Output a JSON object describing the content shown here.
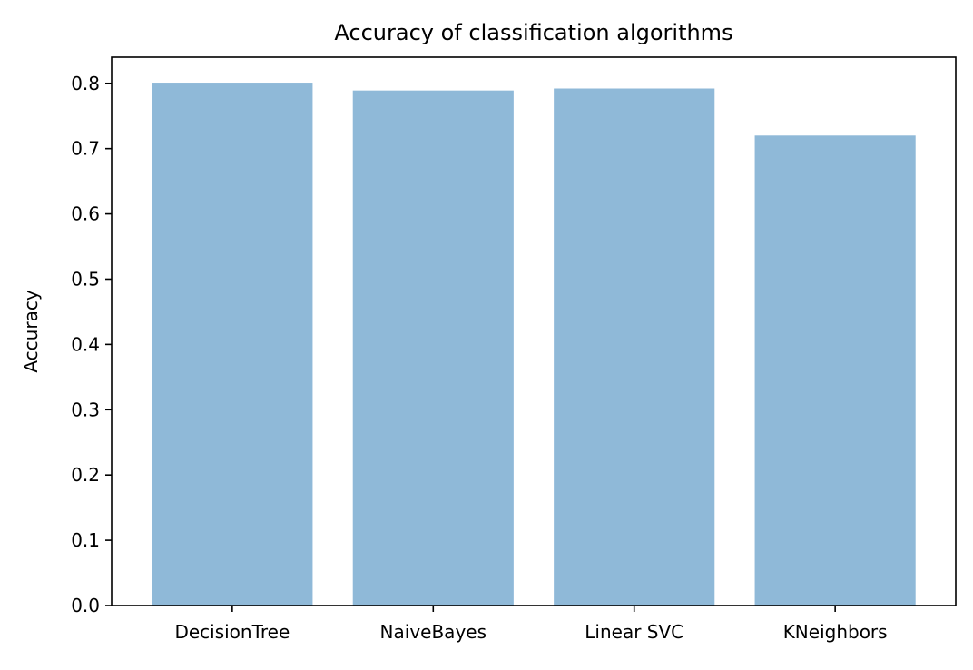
{
  "chart_data": {
    "type": "bar",
    "title": "Accuracy of classification algorithms",
    "xlabel": "",
    "ylabel": "Accuracy",
    "categories": [
      "DecisionTree",
      "NaiveBayes",
      "Linear SVC",
      "KNeighbors"
    ],
    "values": [
      0.801,
      0.789,
      0.792,
      0.72
    ],
    "ylim": [
      0,
      0.84
    ],
    "yticks": [
      "0.0",
      "0.1",
      "0.2",
      "0.3",
      "0.4",
      "0.5",
      "0.6",
      "0.7",
      "0.8"
    ],
    "bar_color": "#8fb9d8",
    "grid": false,
    "legend": "none"
  }
}
